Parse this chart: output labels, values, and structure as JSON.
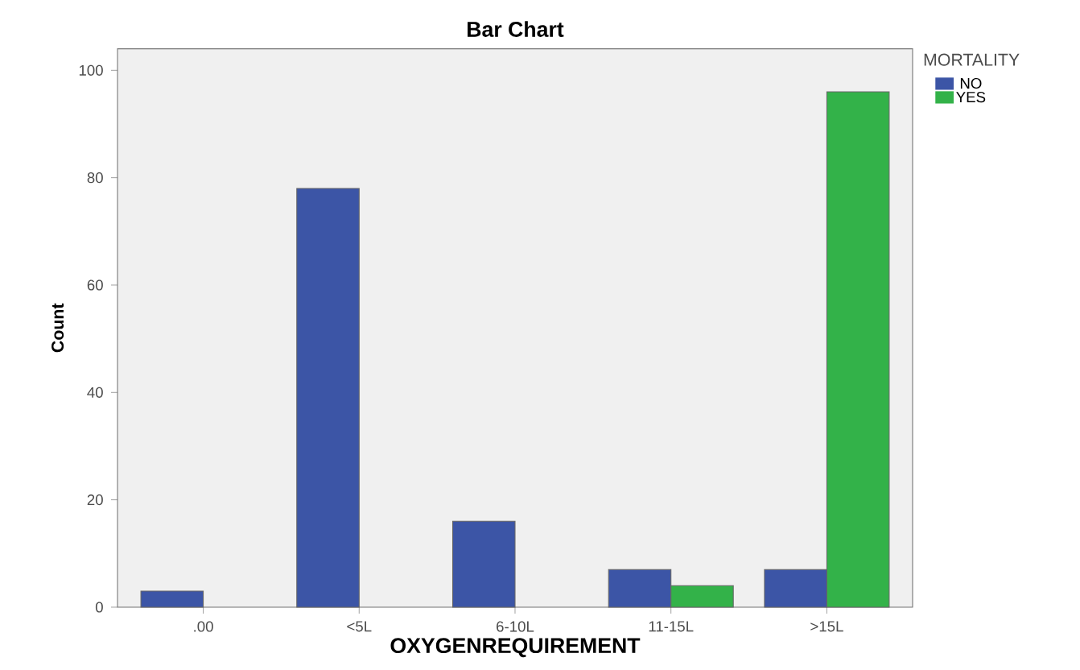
{
  "chart_data": {
    "type": "bar",
    "title": "Bar Chart",
    "xlabel": "OXYGENREQUIREMENT",
    "ylabel": "Count",
    "legend_title": "MORTALITY",
    "categories": [
      ".00",
      "<5L",
      "6-10L",
      "11-15L",
      ">15L"
    ],
    "series": [
      {
        "name": "NO",
        "color": "#3c55a6",
        "values": [
          3,
          78,
          16,
          7,
          7
        ]
      },
      {
        "name": "YES",
        "color": "#33b249",
        "values": [
          null,
          null,
          null,
          4,
          96
        ]
      }
    ],
    "ylim": [
      0,
      104
    ],
    "yticks": [
      0,
      20,
      40,
      60,
      80,
      100
    ],
    "legend": "top right",
    "grid": false
  }
}
